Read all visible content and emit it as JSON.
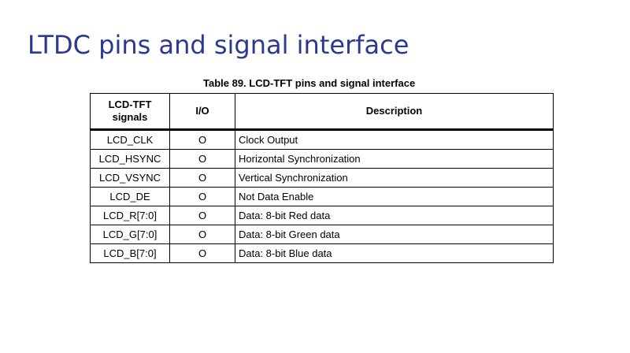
{
  "slide": {
    "title": "LTDC pins and signal interface"
  },
  "table": {
    "caption": "Table 89. LCD-TFT pins and signal interface",
    "headers": {
      "signal": "LCD-TFT\nsignals",
      "io": "I/O",
      "description": "Description"
    },
    "rows": [
      {
        "signal": "LCD_CLK",
        "io": "O",
        "description": "Clock Output"
      },
      {
        "signal": "LCD_HSYNC",
        "io": "O",
        "description": "Horizontal Synchronization"
      },
      {
        "signal": "LCD_VSYNC",
        "io": "O",
        "description": "Vertical Synchronization"
      },
      {
        "signal": "LCD_DE",
        "io": "O",
        "description": "Not Data Enable"
      },
      {
        "signal": "LCD_R[7:0]",
        "io": "O",
        "description": "Data: 8-bit Red data"
      },
      {
        "signal": "LCD_G[7:0]",
        "io": "O",
        "description": "Data: 8-bit Green data"
      },
      {
        "signal": "LCD_B[7:0]",
        "io": "O",
        "description": "Data: 8-bit Blue data"
      }
    ]
  },
  "colors": {
    "title": "#2b3a8f",
    "text": "#000000",
    "background": "#ffffff"
  }
}
